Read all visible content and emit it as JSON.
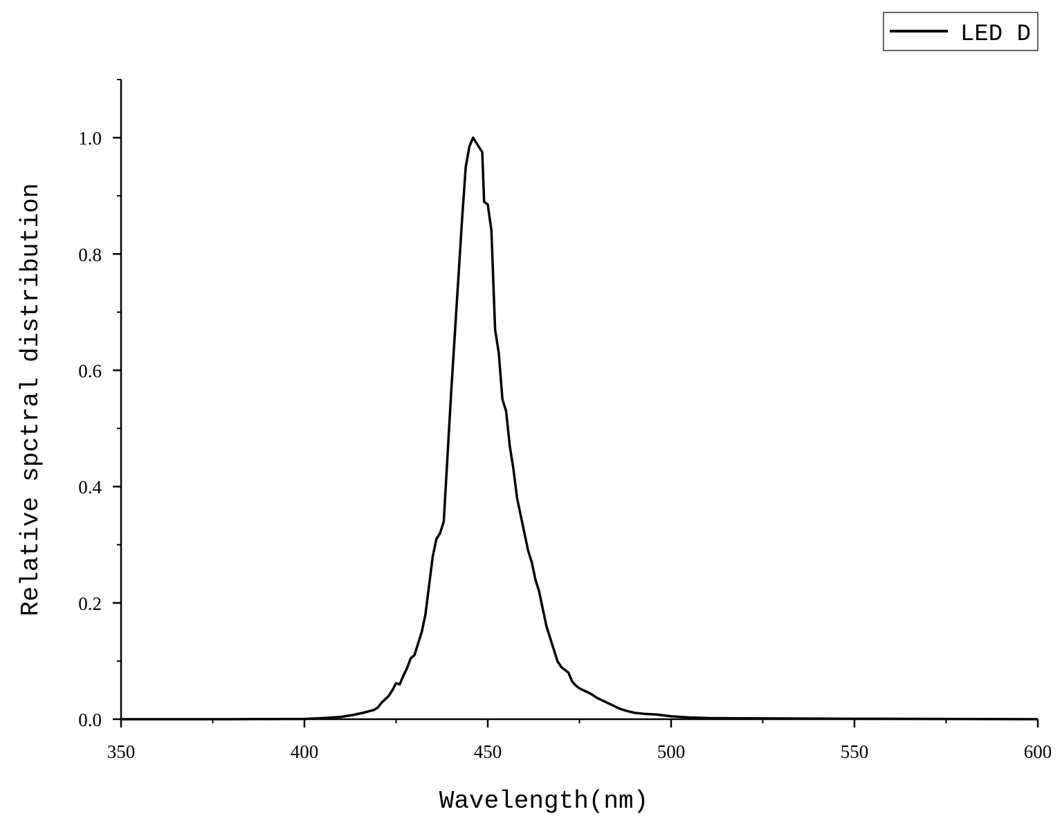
{
  "chart_data": {
    "type": "line",
    "title": "",
    "xlabel": "Wavelength(nm)",
    "ylabel": "Relative spctral distribution",
    "xlim": [
      350,
      600
    ],
    "ylim": [
      0,
      1.1
    ],
    "x_ticks": [
      350,
      400,
      450,
      500,
      550,
      600
    ],
    "x_tick_labels": [
      "350",
      "400",
      "450",
      "500",
      "550",
      "600"
    ],
    "y_ticks": [
      0,
      0.2,
      0.4,
      0.6,
      0.8,
      1.0
    ],
    "y_tick_labels": [
      "0.0",
      "0.2",
      "0.4",
      "0.6",
      "0.8",
      "1.0"
    ],
    "grid": false,
    "legend_position": "top-right",
    "line_color": "#000000",
    "series": [
      {
        "name": "LED D",
        "x": [
          350,
          380,
          400,
          405,
          410,
          413,
          416,
          419,
          420,
          421,
          423,
          424,
          425,
          426,
          427,
          428,
          429,
          430,
          431,
          432,
          433,
          434,
          435,
          436,
          437,
          438,
          439,
          440,
          441,
          442,
          443,
          444,
          445,
          446,
          447,
          448,
          448.5,
          449,
          450,
          451,
          452,
          453,
          454,
          455,
          456,
          457,
          458,
          459,
          460,
          461,
          462,
          463,
          464,
          465,
          466,
          467,
          468,
          469,
          470,
          471,
          472,
          473,
          474,
          475,
          476,
          478,
          480,
          483,
          486,
          488,
          490,
          493,
          496,
          500,
          505,
          510,
          520,
          550,
          600
        ],
        "y": [
          0,
          0,
          0.0005,
          0.002,
          0.004,
          0.007,
          0.011,
          0.016,
          0.02,
          0.028,
          0.04,
          0.05,
          0.062,
          0.06,
          0.075,
          0.088,
          0.105,
          0.11,
          0.13,
          0.15,
          0.18,
          0.23,
          0.28,
          0.31,
          0.32,
          0.34,
          0.45,
          0.56,
          0.66,
          0.76,
          0.86,
          0.95,
          0.985,
          1.0,
          0.99,
          0.98,
          0.975,
          0.89,
          0.885,
          0.84,
          0.67,
          0.63,
          0.55,
          0.53,
          0.47,
          0.43,
          0.38,
          0.35,
          0.32,
          0.29,
          0.27,
          0.24,
          0.22,
          0.19,
          0.16,
          0.14,
          0.12,
          0.1,
          0.09,
          0.085,
          0.08,
          0.065,
          0.058,
          0.053,
          0.05,
          0.044,
          0.036,
          0.027,
          0.018,
          0.014,
          0.011,
          0.009,
          0.008,
          0.005,
          0.003,
          0.002,
          0.0015,
          0.0008,
          0
        ]
      }
    ]
  }
}
